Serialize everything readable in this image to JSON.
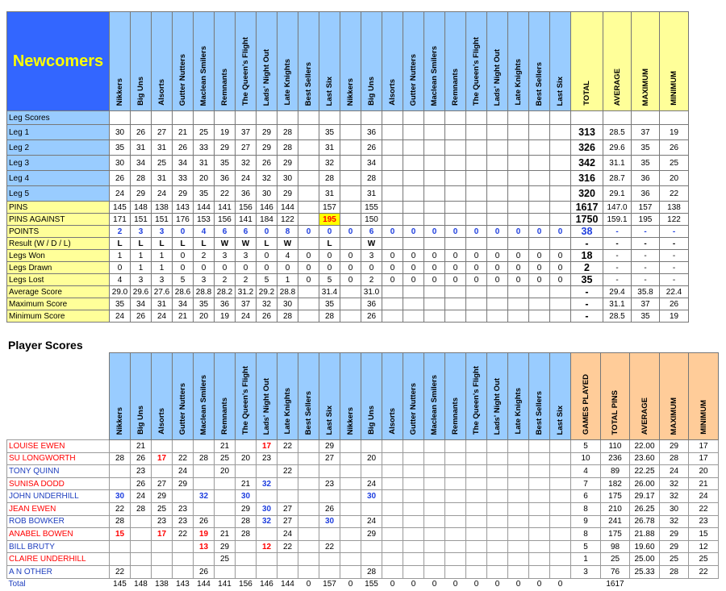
{
  "summary_table": {
    "title": "Newcomers",
    "teams": [
      "Nikkers",
      "Big Uns",
      "Alsorts",
      "Gutter Nutters",
      "Maclean Smilers",
      "Remnants",
      "The Queen's Flight",
      "Lads' Night Out",
      "Late Knights",
      "Best Sellers",
      "Last Six",
      "Nikkers",
      "Big Uns",
      "Alsorts",
      "Gutter Nutters",
      "Maclean Smilers",
      "Remnants",
      "The Queen's Flight",
      "Lads' Night Out",
      "Late Knights",
      "Best Sellers",
      "Last Six"
    ],
    "summary_headers": [
      "TOTAL",
      "AVERAGE",
      "MAXIMUM",
      "MINIMUM"
    ],
    "rows": [
      {
        "label": "Leg Scores"
      },
      {
        "label": "Leg 1",
        "cells": [
          "30",
          "26",
          "27",
          "21",
          "25",
          "19",
          "37",
          "29",
          "28",
          null,
          "35",
          null,
          "36",
          null,
          null,
          null,
          null,
          null,
          null,
          null,
          null,
          null
        ],
        "summary": [
          "313",
          "28.5",
          "37",
          "19"
        ]
      },
      {
        "label": "Leg 2",
        "cells": [
          "35",
          "31",
          "31",
          "26",
          "33",
          "29",
          "27",
          "29",
          "28",
          null,
          "31",
          null,
          "26",
          null,
          null,
          null,
          null,
          null,
          null,
          null,
          null,
          null
        ],
        "summary": [
          "326",
          "29.6",
          "35",
          "26"
        ]
      },
      {
        "label": "Leg 3",
        "cells": [
          "30",
          "34",
          "25",
          "34",
          "31",
          "35",
          "32",
          "26",
          "29",
          null,
          "32",
          null,
          "34",
          null,
          null,
          null,
          null,
          null,
          null,
          null,
          null,
          null
        ],
        "summary": [
          "342",
          "31.1",
          "35",
          "25"
        ]
      },
      {
        "label": "Leg 4",
        "cells": [
          "26",
          "28",
          "31",
          "33",
          "20",
          "36",
          "24",
          "32",
          "30",
          null,
          "28",
          null,
          "28",
          null,
          null,
          null,
          null,
          null,
          null,
          null,
          null,
          null
        ],
        "summary": [
          "316",
          "28.7",
          "36",
          "20"
        ]
      },
      {
        "label": "Leg 5",
        "cells": [
          "24",
          "29",
          "24",
          "29",
          "35",
          "22",
          "36",
          "30",
          "29",
          null,
          "31",
          null,
          "31",
          null,
          null,
          null,
          null,
          null,
          null,
          null,
          null,
          null
        ],
        "summary": [
          "320",
          "29.1",
          "36",
          "22"
        ]
      },
      {
        "label": "PINS",
        "cells": [
          "145",
          "148",
          "138",
          "143",
          "144",
          "141",
          "156",
          "146",
          "144",
          null,
          "157",
          null,
          "155",
          null,
          null,
          null,
          null,
          null,
          null,
          null,
          null,
          null
        ],
        "summary": [
          "1617",
          "147.0",
          "157",
          "138"
        ]
      },
      {
        "label": "PINS AGAINST",
        "cells": [
          "171",
          "151",
          "151",
          "176",
          "153",
          "156",
          "141",
          "184",
          "122",
          null,
          {
            "text": "195",
            "color": "#ff0000",
            "fill": "#ffff00"
          },
          null,
          "150",
          null,
          null,
          null,
          null,
          null,
          null,
          null,
          null,
          null
        ],
        "summary": [
          "1750",
          "159.1",
          "195",
          "122"
        ]
      },
      {
        "label": "POINTS",
        "cells": [
          "2",
          "3",
          "3",
          "0",
          "4",
          "6",
          "6",
          "0",
          "8",
          "0",
          "0",
          "0",
          "6",
          "0",
          "0",
          "0",
          "0",
          "0",
          "0",
          "0",
          "0",
          "0"
        ],
        "summary": [
          "38",
          "-",
          "-",
          "-"
        ]
      },
      {
        "label": "Result (W / D / L)",
        "cells": [
          "L",
          "L",
          "L",
          "L",
          "L",
          "W",
          "W",
          "L",
          "W",
          null,
          "L",
          null,
          "W",
          null,
          null,
          null,
          null,
          null,
          null,
          null,
          null,
          null
        ],
        "summary": [
          "-",
          "-",
          "-",
          "-"
        ]
      },
      {
        "label": "Legs Won",
        "cells": [
          "1",
          "1",
          "1",
          "0",
          "2",
          "3",
          "3",
          "0",
          "4",
          "0",
          "0",
          "0",
          "3",
          "0",
          "0",
          "0",
          "0",
          "0",
          "0",
          "0",
          "0",
          "0"
        ],
        "summary": [
          "18",
          "-",
          "-",
          "-"
        ]
      },
      {
        "label": "Legs Drawn",
        "cells": [
          "0",
          "1",
          "1",
          "0",
          "0",
          "0",
          "0",
          "0",
          "0",
          "0",
          "0",
          "0",
          "0",
          "0",
          "0",
          "0",
          "0",
          "0",
          "0",
          "0",
          "0",
          "0"
        ],
        "summary": [
          "2",
          "-",
          "-",
          "-"
        ]
      },
      {
        "label": "Legs Lost",
        "cells": [
          "4",
          "3",
          "3",
          "5",
          "3",
          "2",
          "2",
          "5",
          "1",
          "0",
          "5",
          "0",
          "2",
          "0",
          "0",
          "0",
          "0",
          "0",
          "0",
          "0",
          "0",
          "0"
        ],
        "summary": [
          "35",
          "-",
          "-",
          "-"
        ]
      },
      {
        "label": "Average Score",
        "cells": [
          "29.0",
          "29.6",
          "27.6",
          "28.6",
          "28.8",
          "28.2",
          "31.2",
          "29.2",
          "28.8",
          null,
          "31.4",
          null,
          "31.0",
          null,
          null,
          null,
          null,
          null,
          null,
          null,
          null,
          null
        ],
        "summary": [
          "-",
          "29.4",
          "35.8",
          "22.4"
        ]
      },
      {
        "label": "Maximum Score",
        "cells": [
          "35",
          "34",
          "31",
          "34",
          "35",
          "36",
          "37",
          "32",
          "30",
          null,
          "35",
          null,
          "36",
          null,
          null,
          null,
          null,
          null,
          null,
          null,
          null,
          null
        ],
        "summary": [
          "-",
          "31.1",
          "37",
          "26"
        ]
      },
      {
        "label": "Minimum Score",
        "cells": [
          "24",
          "26",
          "24",
          "21",
          "20",
          "19",
          "24",
          "26",
          "28",
          null,
          "28",
          null,
          "26",
          null,
          null,
          null,
          null,
          null,
          null,
          null,
          null,
          null
        ],
        "summary": [
          "-",
          "28.5",
          "35",
          "19"
        ]
      }
    ]
  },
  "player_section": {
    "title": "Player Scores",
    "teams": [
      "Nikkers",
      "Big Uns",
      "Alsorts",
      "Gutter Nutters",
      "Maclean Smilers",
      "Remnants",
      "The Queen's Flight",
      "Lads' Night Out",
      "Late Knights",
      "Best Sellers",
      "Last Six",
      "Nikkers",
      "Big Uns",
      "Alsorts",
      "Gutter Nutters",
      "Maclean Smilers",
      "Remnants",
      "The Queen's Flight",
      "Lads' Night Out",
      "Late Knights",
      "Best Sellers",
      "Last Six"
    ],
    "summary_headers": [
      "GAMES PLAYED",
      "TOTAL PINS",
      "AVERAGE",
      "MAXIMUM",
      "MINIMUM"
    ],
    "players": [
      {
        "name": "LOUISE EWEN",
        "color": "#ff0000",
        "cells": [
          null,
          "21",
          null,
          null,
          null,
          "21",
          null,
          {
            "text": "17",
            "color": "#ff0000"
          },
          "22",
          null,
          "29",
          null,
          null,
          null,
          null,
          null,
          null,
          null,
          null,
          null,
          null,
          null
        ],
        "summary": [
          "5",
          "110",
          "22.00",
          "29",
          "17"
        ]
      },
      {
        "name": "SU LONGWORTH",
        "color": "#ff0000",
        "cells": [
          "28",
          "26",
          {
            "text": "17",
            "color": "#ff0000"
          },
          "22",
          "28",
          "25",
          "20",
          "23",
          null,
          null,
          "27",
          null,
          "20",
          null,
          null,
          null,
          null,
          null,
          null,
          null,
          null,
          null
        ],
        "summary": [
          "10",
          "236",
          "23.60",
          "28",
          "17"
        ]
      },
      {
        "name": "TONY QUINN",
        "color": "#1f3fbf",
        "cells": [
          null,
          "23",
          null,
          "24",
          null,
          "20",
          null,
          null,
          "22",
          null,
          null,
          null,
          null,
          null,
          null,
          null,
          null,
          null,
          null,
          null,
          null,
          null
        ],
        "summary": [
          "4",
          "89",
          "22.25",
          "24",
          "20"
        ]
      },
      {
        "name": "SUNISA DODD",
        "color": "#ff0000",
        "cells": [
          null,
          "26",
          "27",
          "29",
          null,
          null,
          "21",
          {
            "text": "32",
            "color": "#1f3fdf"
          },
          null,
          null,
          "23",
          null,
          "24",
          null,
          null,
          null,
          null,
          null,
          null,
          null,
          null,
          null
        ],
        "summary": [
          "7",
          "182",
          "26.00",
          "32",
          "21"
        ]
      },
      {
        "name": "JOHN UNDERHILL",
        "color": "#1f3fbf",
        "cells": [
          {
            "text": "30",
            "color": "#1f3fdf"
          },
          "24",
          "29",
          null,
          {
            "text": "32",
            "color": "#1f3fdf"
          },
          null,
          {
            "text": "30",
            "color": "#1f3fdf"
          },
          null,
          null,
          null,
          null,
          null,
          {
            "text": "30",
            "color": "#1f3fdf"
          },
          null,
          null,
          null,
          null,
          null,
          null,
          null,
          null,
          null
        ],
        "summary": [
          "6",
          "175",
          "29.17",
          "32",
          "24"
        ]
      },
      {
        "name": "JEAN EWEN",
        "color": "#ff0000",
        "cells": [
          "22",
          "28",
          "25",
          "23",
          null,
          null,
          "29",
          {
            "text": "30",
            "color": "#1f3fdf"
          },
          "27",
          null,
          "26",
          null,
          null,
          null,
          null,
          null,
          null,
          null,
          null,
          null,
          null,
          null
        ],
        "summary": [
          "8",
          "210",
          "26.25",
          "30",
          "22"
        ]
      },
      {
        "name": "ROB BOWKER",
        "color": "#1f3fbf",
        "cells": [
          "28",
          null,
          "23",
          "23",
          "26",
          null,
          "28",
          {
            "text": "32",
            "color": "#1f3fdf"
          },
          "27",
          null,
          {
            "text": "30",
            "color": "#1f3fdf"
          },
          null,
          "24",
          null,
          null,
          null,
          null,
          null,
          null,
          null,
          null,
          null
        ],
        "summary": [
          "9",
          "241",
          "26.78",
          "32",
          "23"
        ]
      },
      {
        "name": "ANABEL BOWEN",
        "color": "#ff0000",
        "cells": [
          {
            "text": "15",
            "color": "#ff0000"
          },
          null,
          {
            "text": "17",
            "color": "#ff0000"
          },
          "22",
          {
            "text": "19",
            "color": "#ff0000"
          },
          "21",
          "28",
          null,
          "24",
          null,
          null,
          null,
          "29",
          null,
          null,
          null,
          null,
          null,
          null,
          null,
          null,
          null
        ],
        "summary": [
          "8",
          "175",
          "21.88",
          "29",
          "15"
        ]
      },
      {
        "name": "BILL BRUTY",
        "color": "#1f3fbf",
        "cells": [
          null,
          null,
          null,
          null,
          {
            "text": "13",
            "color": "#ff0000"
          },
          "29",
          null,
          {
            "text": "12",
            "color": "#ff0000"
          },
          "22",
          null,
          "22",
          null,
          null,
          null,
          null,
          null,
          null,
          null,
          null,
          null,
          null,
          null
        ],
        "summary": [
          "5",
          "98",
          "19.60",
          "29",
          "12"
        ]
      },
      {
        "name": "CLAIRE UNDERHILL",
        "color": "#ff0000",
        "cells": [
          null,
          null,
          null,
          null,
          null,
          "25",
          null,
          null,
          null,
          null,
          null,
          null,
          null,
          null,
          null,
          null,
          null,
          null,
          null,
          null,
          null,
          null
        ],
        "summary": [
          "1",
          "25",
          "25.00",
          "25",
          "25"
        ]
      },
      {
        "name": "A N OTHER",
        "color": "#1f3fbf",
        "cells": [
          "22",
          null,
          null,
          null,
          "26",
          null,
          null,
          null,
          null,
          null,
          null,
          null,
          "28",
          null,
          null,
          null,
          null,
          null,
          null,
          null,
          null,
          null
        ],
        "summary": [
          "3",
          "76",
          "25.33",
          "28",
          "22"
        ]
      }
    ],
    "total": {
      "label": "Total",
      "cells": [
        "145",
        "148",
        "138",
        "143",
        "144",
        "141",
        "156",
        "146",
        "144",
        "0",
        "157",
        "0",
        "155",
        "0",
        "0",
        "0",
        "0",
        "0",
        "0",
        "0",
        "0",
        "0"
      ],
      "summary": [
        null,
        "1617",
        null,
        null,
        null
      ]
    }
  }
}
